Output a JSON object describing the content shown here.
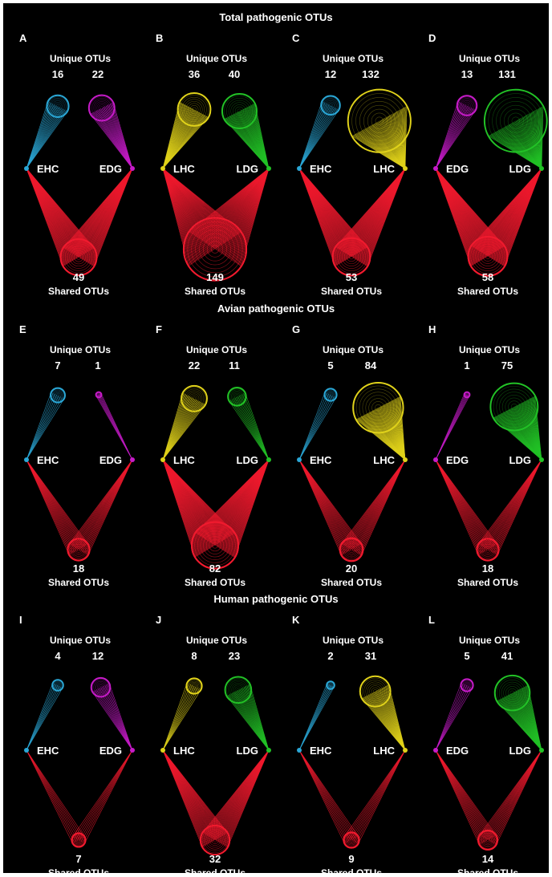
{
  "rows": [
    {
      "title": "Total pathogenic OTUs",
      "panels": [
        {
          "letter": "A",
          "left": {
            "group": "EHC",
            "color": "#2aa7d6",
            "unique": 16
          },
          "right": {
            "group": "EDG",
            "color": "#c71bc9",
            "unique": 22
          },
          "shared": 49
        },
        {
          "letter": "B",
          "left": {
            "group": "LHC",
            "color": "#e0d21a",
            "unique": 36
          },
          "right": {
            "group": "LDG",
            "color": "#22c226",
            "unique": 40
          },
          "shared": 149
        },
        {
          "letter": "C",
          "left": {
            "group": "EHC",
            "color": "#2aa7d6",
            "unique": 12
          },
          "right": {
            "group": "LHC",
            "color": "#e0d21a",
            "unique": 132
          },
          "shared": 53
        },
        {
          "letter": "D",
          "left": {
            "group": "EDG",
            "color": "#c71bc9",
            "unique": 13
          },
          "right": {
            "group": "LDG",
            "color": "#22c226",
            "unique": 131
          },
          "shared": 58
        }
      ]
    },
    {
      "title": "Avian pathogenic OTUs",
      "panels": [
        {
          "letter": "E",
          "left": {
            "group": "EHC",
            "color": "#2aa7d6",
            "unique": 7
          },
          "right": {
            "group": "EDG",
            "color": "#c71bc9",
            "unique": 1
          },
          "shared": 18
        },
        {
          "letter": "F",
          "left": {
            "group": "LHC",
            "color": "#e0d21a",
            "unique": 22
          },
          "right": {
            "group": "LDG",
            "color": "#22c226",
            "unique": 11
          },
          "shared": 82
        },
        {
          "letter": "G",
          "left": {
            "group": "EHC",
            "color": "#2aa7d6",
            "unique": 5
          },
          "right": {
            "group": "LHC",
            "color": "#e0d21a",
            "unique": 84
          },
          "shared": 20
        },
        {
          "letter": "H",
          "left": {
            "group": "EDG",
            "color": "#c71bc9",
            "unique": 1
          },
          "right": {
            "group": "LDG",
            "color": "#22c226",
            "unique": 75
          },
          "shared": 18
        }
      ]
    },
    {
      "title": "Human pathogenic OTUs",
      "panels": [
        {
          "letter": "I",
          "left": {
            "group": "EHC",
            "color": "#2aa7d6",
            "unique": 4
          },
          "right": {
            "group": "EDG",
            "color": "#c71bc9",
            "unique": 12
          },
          "shared": 7
        },
        {
          "letter": "J",
          "left": {
            "group": "LHC",
            "color": "#e0d21a",
            "unique": 8
          },
          "right": {
            "group": "LDG",
            "color": "#22c226",
            "unique": 23
          },
          "shared": 32
        },
        {
          "letter": "K",
          "left": {
            "group": "EHC",
            "color": "#2aa7d6",
            "unique": 2
          },
          "right": {
            "group": "LHC",
            "color": "#e0d21a",
            "unique": 31
          },
          "shared": 9
        },
        {
          "letter": "L",
          "left": {
            "group": "EDG",
            "color": "#c71bc9",
            "unique": 5
          },
          "right": {
            "group": "LDG",
            "color": "#22c226",
            "unique": 41
          },
          "shared": 14
        }
      ]
    }
  ],
  "labels": {
    "unique": "Unique OTUs",
    "shared": "Shared OTUs"
  },
  "shared_color": "#f01a2e"
}
